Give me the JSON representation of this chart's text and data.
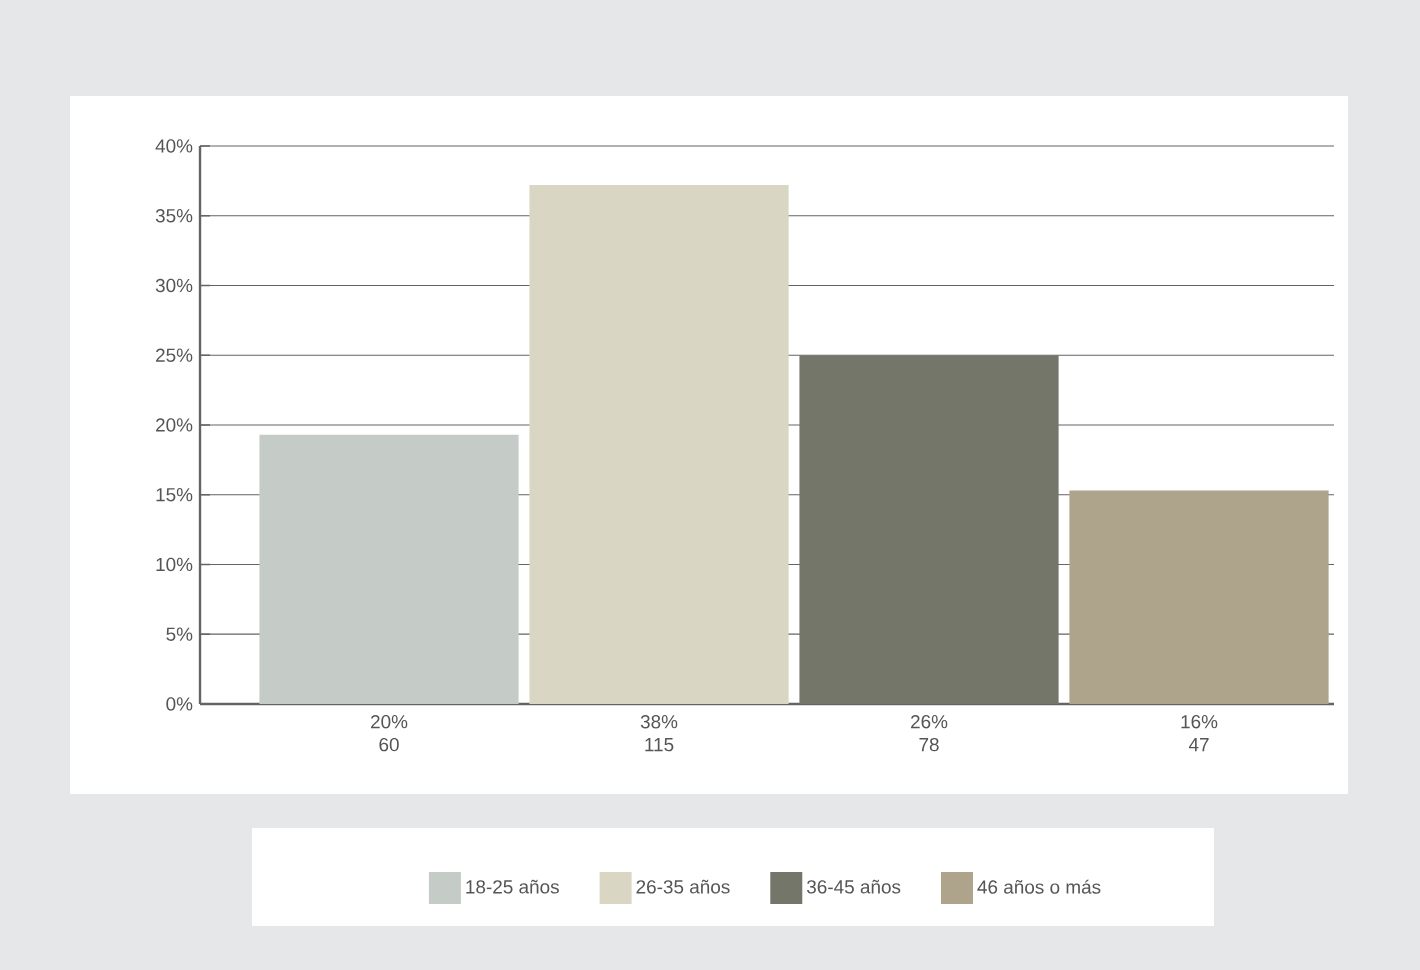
{
  "chart_data": {
    "type": "bar",
    "categories": [
      "20% 60",
      "38% 115",
      "26% 78",
      "16% 47"
    ],
    "series": [
      {
        "name": "18-25 años",
        "color": "#c5cbc7",
        "values": [
          19.3,
          null,
          null,
          null
        ]
      },
      {
        "name": "26-35 años",
        "color": "#d9d7c4",
        "values": [
          null,
          37.2,
          null,
          null
        ]
      },
      {
        "name": "36-45 años",
        "color": "#75766a",
        "values": [
          null,
          null,
          25.0,
          null
        ]
      },
      {
        "name": "46 años o más",
        "color": "#aea38b",
        "values": [
          null,
          null,
          null,
          15.3
        ]
      }
    ],
    "ylim": [
      0,
      40
    ],
    "yticks": [
      {
        "value": 0,
        "label": "0%"
      },
      {
        "value": 5,
        "label": "5%"
      },
      {
        "value": 10,
        "label": "10%"
      },
      {
        "value": 15,
        "label": "15%"
      },
      {
        "value": 20,
        "label": "20%"
      },
      {
        "value": 25,
        "label": "25%"
      },
      {
        "value": 30,
        "label": "30%"
      },
      {
        "value": 35,
        "label": "35%"
      },
      {
        "value": 40,
        "label": "40%"
      }
    ],
    "grid": "y",
    "legend": "bottom"
  }
}
